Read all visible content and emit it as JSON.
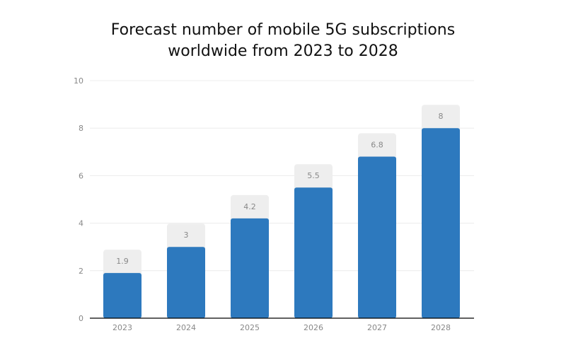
{
  "chart_data": {
    "type": "bar",
    "title": "Forecast number of mobile 5G subscriptions worldwide from 2023 to 2028",
    "title_lines": [
      "Forecast number of mobile 5G subscriptions",
      "worldwide from 2023 to 2028"
    ],
    "categories": [
      "2023",
      "2024",
      "2025",
      "2026",
      "2027",
      "2028"
    ],
    "values": [
      1.9,
      3,
      4.2,
      5.5,
      6.8,
      8
    ],
    "data_labels": [
      "1.9",
      "3",
      "4.2",
      "5.5",
      "6.8",
      "8"
    ],
    "xlabel": "",
    "ylabel": "",
    "ylim": [
      0,
      10
    ],
    "yticks": [
      0,
      2,
      4,
      6,
      8,
      10
    ],
    "grid": true,
    "legend": "none",
    "colors": {
      "bar": "#2d79be",
      "label_box": "#eeeeee",
      "grid": "#ececec",
      "axis": "#000000",
      "tick_text": "#888888"
    }
  }
}
